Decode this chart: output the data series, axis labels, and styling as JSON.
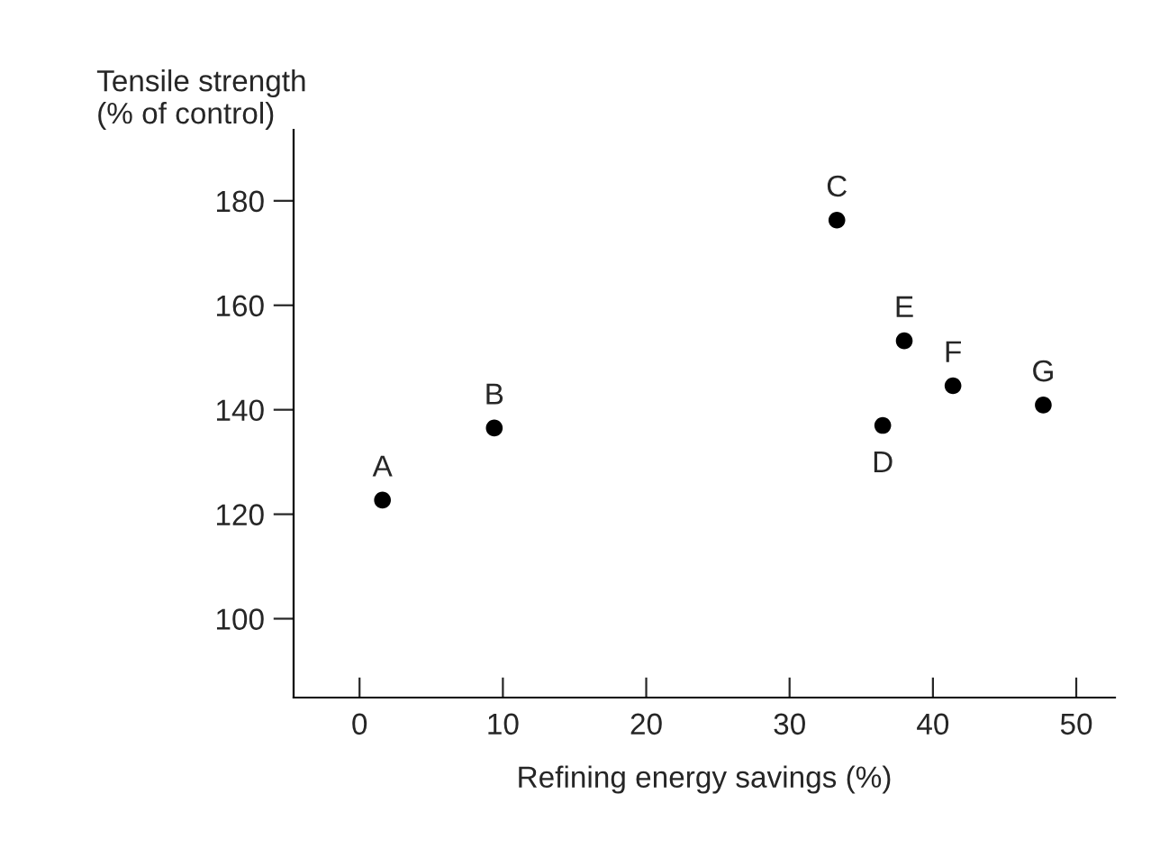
{
  "chart_data": {
    "type": "scatter",
    "xlabel": "Refining energy savings (%)",
    "ylabel": "Tensile strength\n(% of control)",
    "series": [
      {
        "color": "#000000",
        "x": [
          1.6,
          9.4,
          33.3,
          36.5,
          38.0,
          41.4,
          47.7
        ],
        "values": [
          122.7,
          136.5,
          176.3,
          137.0,
          153.2,
          144.6,
          140.9
        ]
      }
    ],
    "annotations": [
      {
        "text": "A",
        "x": 1.6,
        "y": 122.7
      },
      {
        "text": "B",
        "x": 9.4,
        "y": 136.5
      },
      {
        "text": "C",
        "x": 33.3,
        "y": 176.3
      },
      {
        "text": "D",
        "x": 36.5,
        "y": 137.0
      },
      {
        "text": "E",
        "x": 38.0,
        "y": 153.2
      },
      {
        "text": "F",
        "x": 41.4,
        "y": 144.6
      },
      {
        "text": "G",
        "x": 47.7,
        "y": 140.9
      }
    ],
    "xlim": [
      -4.6,
      52.7
    ],
    "ylim": [
      84.9,
      193.6
    ],
    "xticks": [
      0,
      10,
      20,
      30,
      40,
      50
    ],
    "yticks": [
      100,
      120,
      140,
      160,
      180
    ],
    "grid": false,
    "legend": false,
    "marker": "circle"
  }
}
